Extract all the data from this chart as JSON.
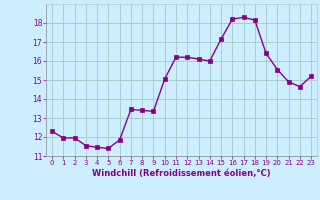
{
  "x": [
    0,
    1,
    2,
    3,
    4,
    5,
    6,
    7,
    8,
    9,
    10,
    11,
    12,
    13,
    14,
    15,
    16,
    17,
    18,
    19,
    20,
    21,
    22,
    23
  ],
  "y": [
    12.3,
    11.95,
    11.95,
    11.55,
    11.45,
    11.4,
    11.85,
    13.45,
    13.4,
    13.35,
    15.05,
    16.2,
    16.2,
    16.1,
    16.0,
    17.15,
    18.2,
    18.3,
    18.15,
    16.4,
    15.55,
    14.9,
    14.65,
    15.2
  ],
  "line_color": "#880088",
  "marker": "s",
  "markersize": 2.5,
  "linewidth": 1.0,
  "bg_color": "#cceeff",
  "grid_color": "#aacccc",
  "tick_color": "#880088",
  "label_color": "#880088",
  "xlabel": "Windchill (Refroidissement éolien,°C)",
  "xlim": [
    -0.5,
    23.5
  ],
  "ylim": [
    11.0,
    19.0
  ],
  "yticks": [
    11,
    12,
    13,
    14,
    15,
    16,
    17,
    18
  ],
  "xticks": [
    0,
    1,
    2,
    3,
    4,
    5,
    6,
    7,
    8,
    9,
    10,
    11,
    12,
    13,
    14,
    15,
    16,
    17,
    18,
    19,
    20,
    21,
    22,
    23
  ],
  "xtick_labels": [
    "0",
    "1",
    "2",
    "3",
    "4",
    "5",
    "6",
    "7",
    "8",
    "9",
    "10",
    "11",
    "12",
    "13",
    "14",
    "15",
    "16",
    "17",
    "18",
    "19",
    "20",
    "21",
    "22",
    "23"
  ]
}
